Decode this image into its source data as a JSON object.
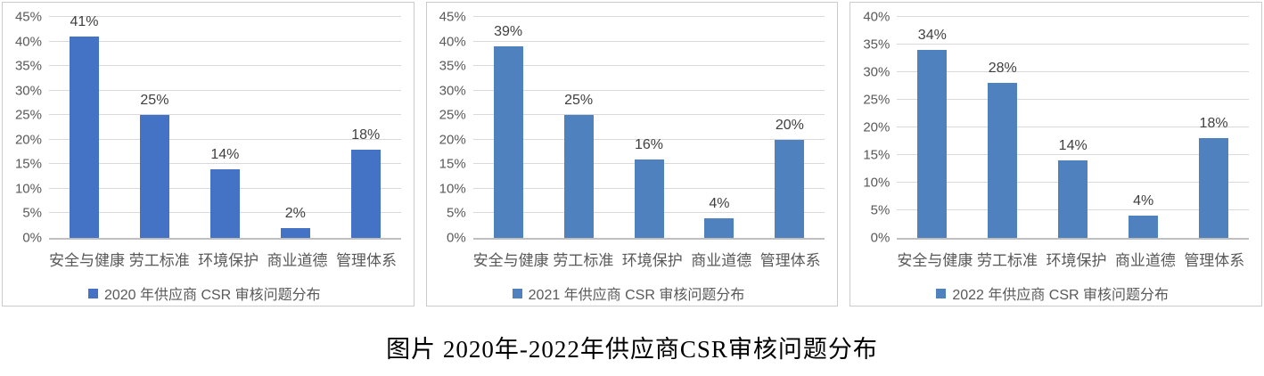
{
  "caption": "图片 2020年-2022年供应商CSR审核问题分布",
  "colors": {
    "bar_2020": "#4472C4",
    "bar_2021": "#4E81BD",
    "bar_2022": "#4E81BD",
    "gridline": "#D9D9D9",
    "axis_line": "#BFBFBF",
    "axis_text": "#595959",
    "value_text": "#3F3F3F",
    "panel_border": "#CBCBCB"
  },
  "chart_data": [
    {
      "type": "bar",
      "legend": "2020 年供应商 CSR 审核问题分布",
      "legend_position": "bottom",
      "grid": true,
      "categories": [
        "安全与健康",
        "劳工标准",
        "环境保护",
        "商业道德",
        "管理体系"
      ],
      "values": [
        41,
        25,
        14,
        2,
        18
      ],
      "value_labels": [
        "41%",
        "25%",
        "14%",
        "2%",
        "18%"
      ],
      "ylim": [
        0,
        45
      ],
      "ytick_step": 5,
      "ytick_labels": [
        "0%",
        "5%",
        "10%",
        "15%",
        "20%",
        "25%",
        "30%",
        "35%",
        "40%",
        "45%"
      ],
      "bar_color": "#4472C4"
    },
    {
      "type": "bar",
      "legend": "2021 年供应商 CSR 审核问题分布",
      "legend_position": "bottom",
      "grid": true,
      "categories": [
        "安全与健康",
        "劳工标准",
        "环境保护",
        "商业道德",
        "管理体系"
      ],
      "values": [
        39,
        25,
        16,
        4,
        20
      ],
      "value_labels": [
        "39%",
        "25%",
        "16%",
        "4%",
        "20%"
      ],
      "ylim": [
        0,
        45
      ],
      "ytick_step": 5,
      "ytick_labels": [
        "0%",
        "5%",
        "10%",
        "15%",
        "20%",
        "25%",
        "30%",
        "35%",
        "40%",
        "45%"
      ],
      "bar_color": "#4E81BD"
    },
    {
      "type": "bar",
      "legend": "2022 年供应商 CSR 审核问题分布",
      "legend_position": "bottom",
      "grid": true,
      "categories": [
        "安全与健康",
        "劳工标准",
        "环境保护",
        "商业道德",
        "管理体系"
      ],
      "values": [
        34,
        28,
        14,
        4,
        18
      ],
      "value_labels": [
        "34%",
        "28%",
        "14%",
        "4%",
        "18%"
      ],
      "ylim": [
        0,
        40
      ],
      "ytick_step": 5,
      "ytick_labels": [
        "0%",
        "5%",
        "10%",
        "15%",
        "20%",
        "25%",
        "30%",
        "35%",
        "40%"
      ],
      "bar_color": "#4E81BD"
    }
  ]
}
